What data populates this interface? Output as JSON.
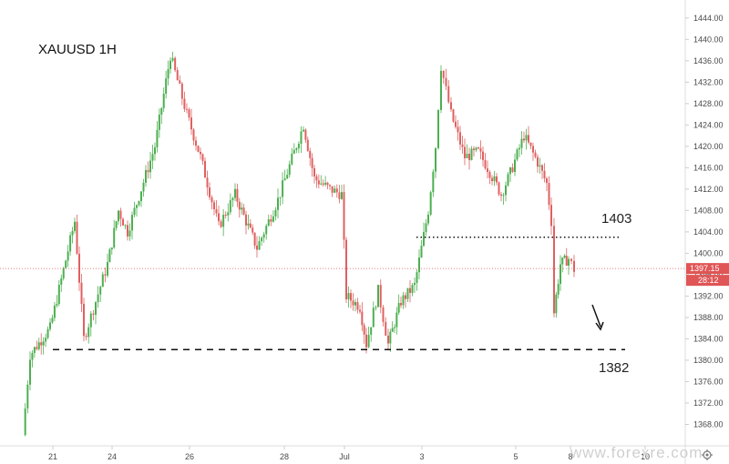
{
  "chart_data": {
    "type": "candlestick",
    "title": "XAUUSD 1H",
    "y_range": [
      1364,
      1446
    ],
    "y_ticks": [
      "1368.00",
      "1372.00",
      "1376.00",
      "1380.00",
      "1384.00",
      "1388.00",
      "1392.00",
      "1396.00",
      "1400.00",
      "1404.00",
      "1408.00",
      "1412.00",
      "1416.00",
      "1420.00",
      "1424.00",
      "1428.00",
      "1432.00",
      "1436.00",
      "1440.00",
      "1444.00"
    ],
    "x_ticks": [
      "21",
      "24",
      "26",
      "28",
      "Jul",
      "3",
      "5",
      "8",
      "10"
    ],
    "price_line": {
      "value": 1397.15,
      "label": "1397.15"
    },
    "countdown": "28:12",
    "levels": [
      {
        "label": "1403",
        "value": 1403,
        "style": "dotted"
      },
      {
        "label": "1382",
        "value": 1382,
        "style": "dashed"
      }
    ],
    "anchor_points": [
      {
        "x": "19 Jun",
        "y": 1366
      },
      {
        "x": "20 Jun",
        "y": 1381
      },
      {
        "x": "21 Jun",
        "y": 1386
      },
      {
        "x": "21 Jun",
        "y": 1406
      },
      {
        "x": "22 Jun",
        "y": 1384
      },
      {
        "x": "22 Jun",
        "y": 1398
      },
      {
        "x": "24 Jun",
        "y": 1408
      },
      {
        "x": "24 Jun",
        "y": 1404
      },
      {
        "x": "25 Jun",
        "y": 1420
      },
      {
        "x": "25 Jun",
        "y": 1437
      },
      {
        "x": "26 Jun",
        "y": 1426
      },
      {
        "x": "26 Jun",
        "y": 1418
      },
      {
        "x": "27 Jun",
        "y": 1405
      },
      {
        "x": "27 Jun",
        "y": 1411
      },
      {
        "x": "28 Jun",
        "y": 1401
      },
      {
        "x": "28 Jun",
        "y": 1410
      },
      {
        "x": "28 Jun",
        "y": 1424
      },
      {
        "x": "29 Jun",
        "y": 1414
      },
      {
        "x": "30 Jun",
        "y": 1412
      },
      {
        "x": "1 Jul",
        "y": 1411
      },
      {
        "x": "1 Jul",
        "y": 1392
      },
      {
        "x": "1 Jul",
        "y": 1390
      },
      {
        "x": "2 Jul",
        "y": 1383
      },
      {
        "x": "2 Jul",
        "y": 1393
      },
      {
        "x": "2 Jul",
        "y": 1383
      },
      {
        "x": "3 Jul",
        "y": 1391
      },
      {
        "x": "3 Jul",
        "y": 1394
      },
      {
        "x": "3 Jul",
        "y": 1408
      },
      {
        "x": "3 Jul",
        "y": 1420
      },
      {
        "x": "3 Jul",
        "y": 1435
      },
      {
        "x": "4 Jul",
        "y": 1426
      },
      {
        "x": "4 Jul",
        "y": 1418
      },
      {
        "x": "4 Jul",
        "y": 1419
      },
      {
        "x": "5 Jul",
        "y": 1416
      },
      {
        "x": "5 Jul",
        "y": 1411
      },
      {
        "x": "5 Jul",
        "y": 1415
      },
      {
        "x": "5 Jul",
        "y": 1422
      },
      {
        "x": "5 Jul",
        "y": 1417
      },
      {
        "x": "5 Jul",
        "y": 1413
      },
      {
        "x": "5 Jul",
        "y": 1406
      },
      {
        "x": "5 Jul",
        "y": 1389
      },
      {
        "x": "5 Jul",
        "y": 1398
      },
      {
        "x": "8 Jul",
        "y": 1399
      },
      {
        "x": "8 Jul",
        "y": 1397
      }
    ],
    "up_color": "#4caf50",
    "down_color": "#e06060"
  },
  "watermark": "www.forexre.com",
  "colors": {
    "price_line": "#e05555",
    "badge": "#e05555",
    "axis_border": "#dcdcdc",
    "level_line": "#111111"
  },
  "icons": {
    "settings": "gear-icon",
    "trend_arrow": "arrow-down-right-icon"
  }
}
